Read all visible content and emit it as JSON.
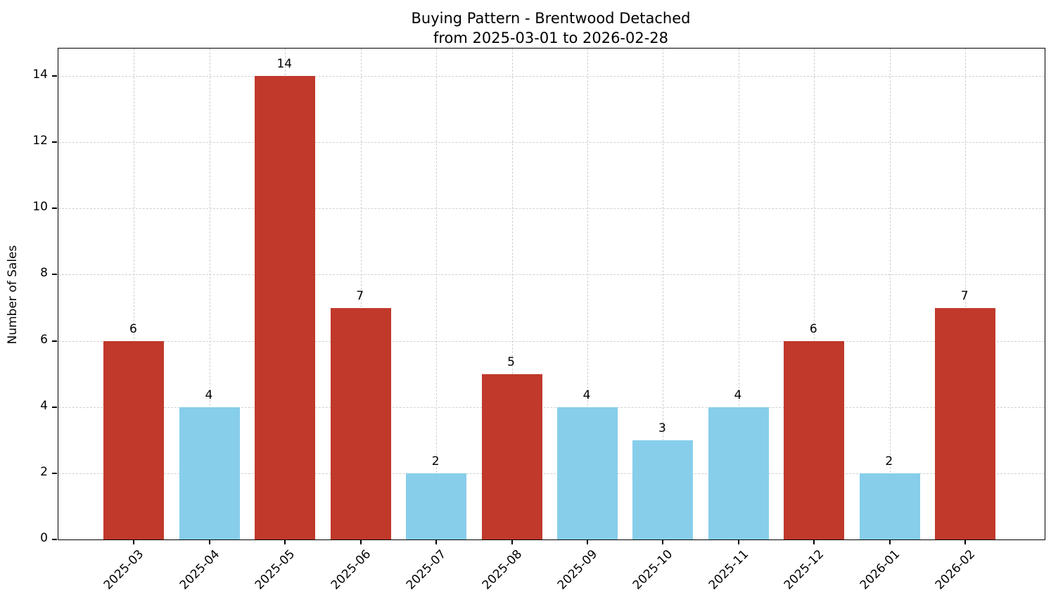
{
  "chart_data": {
    "type": "bar",
    "title": "Buying Pattern - Brentwood Detached",
    "subtitle": "from 2025-03-01 to 2026-02-28",
    "xlabel": "",
    "ylabel": "Number of Sales",
    "categories": [
      "2025-03",
      "2025-04",
      "2025-05",
      "2025-06",
      "2025-07",
      "2025-08",
      "2025-09",
      "2025-10",
      "2025-11",
      "2025-12",
      "2026-01",
      "2026-02"
    ],
    "values": [
      6,
      4,
      14,
      7,
      2,
      5,
      4,
      3,
      4,
      6,
      2,
      7
    ],
    "value_labels": [
      "6",
      "4",
      "14",
      "7",
      "2",
      "5",
      "4",
      "3",
      "4",
      "6",
      "2",
      "7"
    ],
    "bar_colors": [
      "#c0392b",
      "#87ceeb",
      "#c0392b",
      "#c0392b",
      "#87ceeb",
      "#c0392b",
      "#87ceeb",
      "#87ceeb",
      "#87ceeb",
      "#c0392b",
      "#87ceeb",
      "#c0392b"
    ],
    "yticks": [
      0,
      2,
      4,
      6,
      8,
      10,
      12,
      14
    ],
    "ylim": [
      0,
      14.83
    ],
    "legend": "none",
    "grid": {
      "visible": true,
      "linestyle": "dashed",
      "color": "#d0d0d0",
      "axes": "both"
    },
    "colors": {
      "high_sales_bar": "#c0392b",
      "low_sales_bar": "#87ceeb",
      "axis": "#000000",
      "text": "#000000",
      "background": "#ffffff"
    }
  }
}
